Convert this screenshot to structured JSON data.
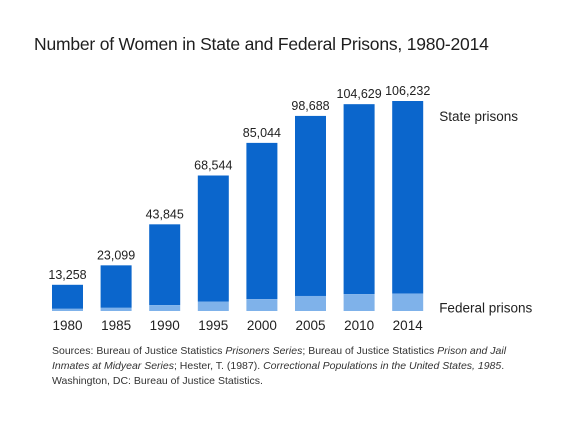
{
  "chart_data": {
    "type": "bar",
    "stacked": true,
    "title": "Number of Women in State and Federal Prisons, 1980-2014",
    "categories": [
      "1980",
      "1985",
      "1990",
      "1995",
      "2000",
      "2005",
      "2010",
      "2014"
    ],
    "totals": [
      13258,
      23099,
      43845,
      68544,
      85044,
      98688,
      104629,
      106232
    ],
    "total_labels": [
      "13,258",
      "23,099",
      "43,845",
      "68,544",
      "85,044",
      "98,688",
      "104,629",
      "106,232"
    ],
    "series": [
      {
        "name": "Federal prisons",
        "color": "#7fb2ea",
        "values": [
          1100,
          1600,
          3000,
          4800,
          6000,
          7600,
          8500,
          8800
        ]
      },
      {
        "name": "State prisons",
        "color": "#0b66cc",
        "values": [
          12158,
          21499,
          40845,
          63744,
          79044,
          91088,
          96129,
          97432
        ]
      }
    ],
    "ylim": [
      0,
      106232
    ],
    "grid": false,
    "legend": "right, labels beside last bar"
  },
  "source": {
    "parts": [
      {
        "text": "Sources: Bureau of Justice Statistics ",
        "italic": false
      },
      {
        "text": "Prisoners Series",
        "italic": true
      },
      {
        "text": "; Bureau of Justice Statistics ",
        "italic": false
      },
      {
        "text": "Prison and Jail Inmates at Midyear Series",
        "italic": true
      },
      {
        "text": "; Hester, T. (1987). ",
        "italic": false
      },
      {
        "text": "Correctional Populations in the United States, 1985",
        "italic": true
      },
      {
        "text": ". Washington, DC: Bureau of Justice Statistics.",
        "italic": false
      }
    ]
  }
}
